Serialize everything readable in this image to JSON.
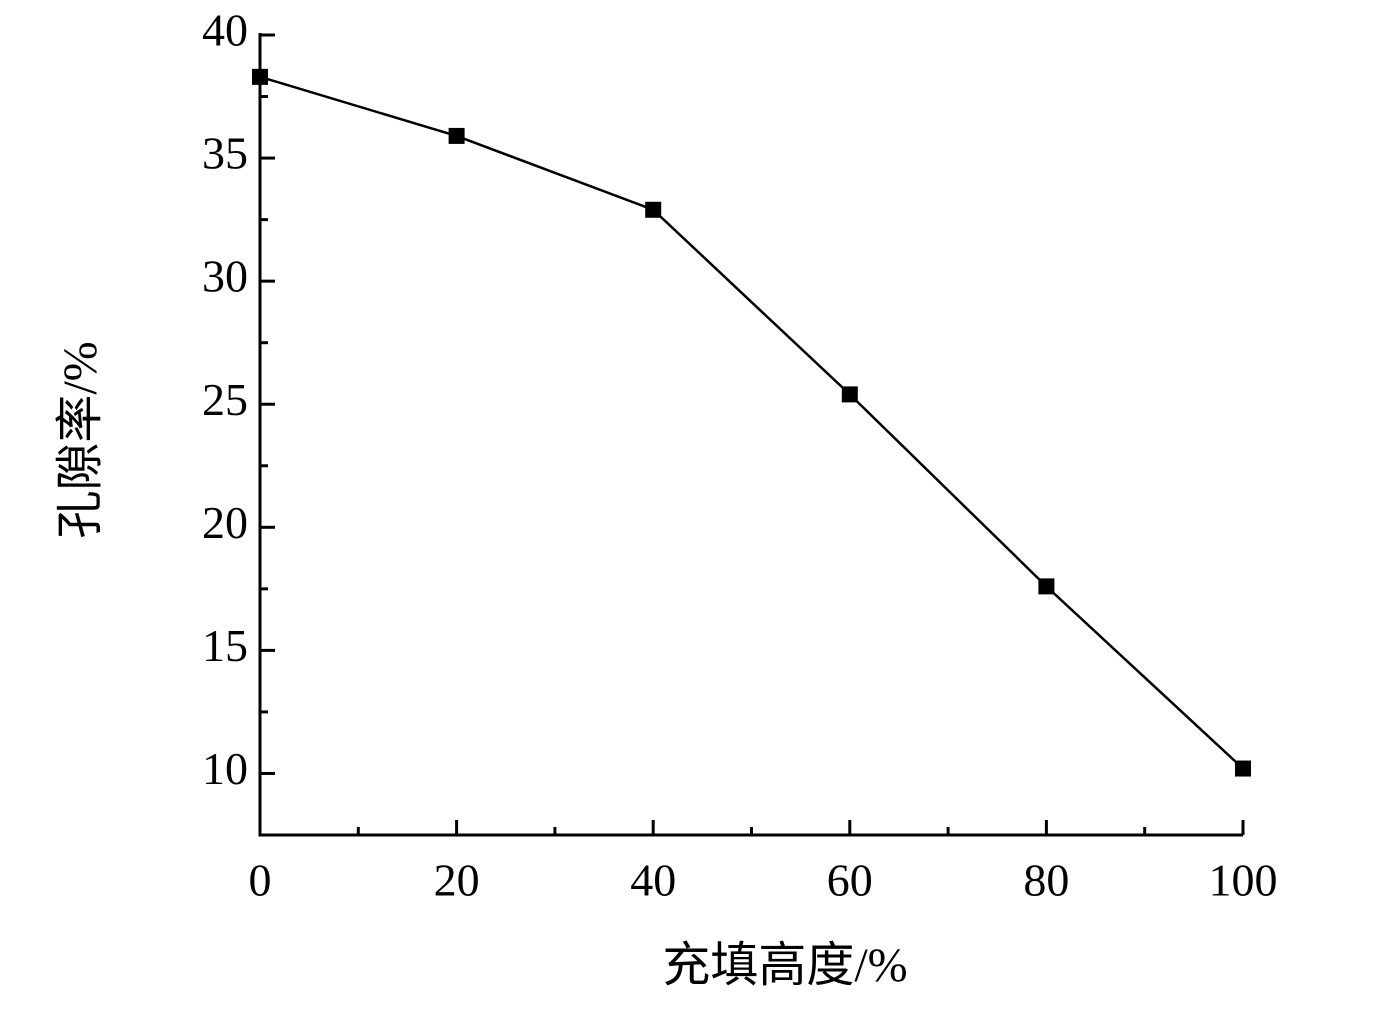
{
  "chart_data": {
    "type": "line",
    "x_label": "充填高度/%",
    "y_label": "孔隙率/%",
    "x": [
      0,
      20,
      40,
      60,
      80,
      100
    ],
    "series": [
      {
        "name": "孔隙率",
        "color": "#000000",
        "values": [
          38.3,
          35.9,
          32.9,
          25.4,
          17.6,
          10.2
        ]
      }
    ],
    "xlim": [
      0,
      100
    ],
    "ylim": [
      7.5,
      40
    ],
    "xticks": [
      0,
      20,
      40,
      60,
      80,
      100
    ],
    "yticks": [
      10,
      15,
      20,
      25,
      30,
      35,
      40
    ],
    "xminorticks": [
      10,
      30,
      50,
      70,
      90
    ],
    "yminorticks": [
      12.5,
      17.5,
      22.5,
      27.5,
      32.5,
      37.5
    ],
    "marker": "square",
    "grid": false
  }
}
